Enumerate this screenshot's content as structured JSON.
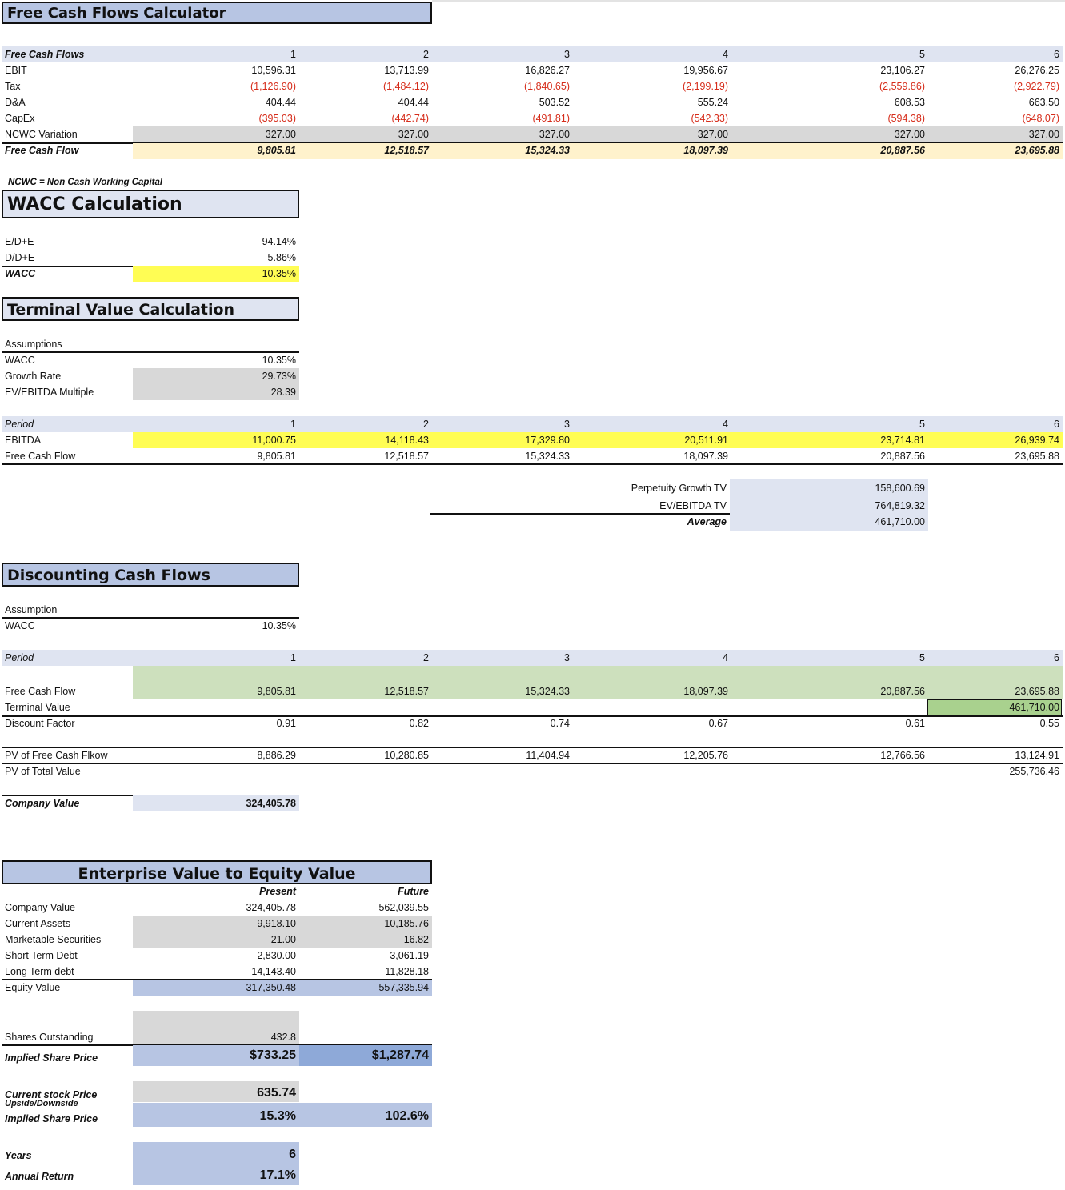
{
  "fcf": {
    "title": "Free Cash Flows Calculator",
    "header_label": "Free Cash Flows",
    "periods": [
      "1",
      "2",
      "3",
      "4",
      "5",
      "6"
    ],
    "rows": [
      {
        "label": "EBIT",
        "values": [
          "10,596.31",
          "13,713.99",
          "16,826.27",
          "19,956.67",
          "23,106.27",
          "26,276.25"
        ]
      },
      {
        "label": "Tax",
        "values": [
          "(1,126.90)",
          "(1,484.12)",
          "(1,840.65)",
          "(2,199.19)",
          "(2,559.86)",
          "(2,922.79)"
        ]
      },
      {
        "label": "D&A",
        "values": [
          "404.44",
          "404.44",
          "503.52",
          "555.24",
          "608.53",
          "663.50"
        ]
      },
      {
        "label": "CapEx",
        "values": [
          "(395.03)",
          "(442.74)",
          "(491.81)",
          "(542.33)",
          "(594.38)",
          "(648.07)"
        ]
      },
      {
        "label": "NCWC Variation",
        "values": [
          "327.00",
          "327.00",
          "327.00",
          "327.00",
          "327.00",
          "327.00"
        ]
      }
    ],
    "total": {
      "label": "Free Cash Flow",
      "values": [
        "9,805.81",
        "12,518.57",
        "15,324.33",
        "18,097.39",
        "20,887.56",
        "23,695.88"
      ]
    },
    "note": "NCWC = Non Cash Working Capital"
  },
  "wacc": {
    "title": "WACC Calculation",
    "rows": [
      {
        "label": "E/D+E",
        "value": "94.14%"
      },
      {
        "label": "D/D+E",
        "value": "5.86%"
      }
    ],
    "result": {
      "label": "WACC",
      "value": "10.35%"
    }
  },
  "tv": {
    "title": "Terminal Value Calculation",
    "assumptions_label": "Assumptions",
    "assumptions": [
      {
        "label": "WACC",
        "value": "10.35%"
      },
      {
        "label": "Growth Rate",
        "value": "29.73%"
      },
      {
        "label": "EV/EBITDA Multiple",
        "value": "28.39"
      }
    ],
    "period_label": "Period",
    "periods": [
      "1",
      "2",
      "3",
      "4",
      "5",
      "6"
    ],
    "ebitda": {
      "label": "EBITDA",
      "values": [
        "11,000.75",
        "14,118.43",
        "17,329.80",
        "20,511.91",
        "23,714.81",
        "26,939.74"
      ]
    },
    "fcf": {
      "label": "Free Cash Flow",
      "values": [
        "9,805.81",
        "12,518.57",
        "15,324.33",
        "18,097.39",
        "20,887.56",
        "23,695.88"
      ]
    },
    "summary": [
      {
        "label": "Perpetuity Growth TV",
        "value": "158,600.69"
      },
      {
        "label": "EV/EBITDA TV",
        "value": "764,819.32"
      },
      {
        "label": "Average",
        "value": "461,710.00"
      }
    ]
  },
  "dcf": {
    "title": "Discounting Cash Flows",
    "assumption_label": "Assumption",
    "wacc": {
      "label": "WACC",
      "value": "10.35%"
    },
    "period_label": "Period",
    "periods": [
      "1",
      "2",
      "3",
      "4",
      "5",
      "6"
    ],
    "fcf": {
      "label": "Free Cash Flow",
      "values": [
        "9,805.81",
        "12,518.57",
        "15,324.33",
        "18,097.39",
        "20,887.56",
        "23,695.88"
      ]
    },
    "terminal": {
      "label": "Terminal Value",
      "value": "461,710.00"
    },
    "discount": {
      "label": "Discount Factor",
      "values": [
        "0.91",
        "0.82",
        "0.74",
        "0.67",
        "0.61",
        "0.55"
      ]
    },
    "pv": {
      "label": "PV of Free Cash Flkow",
      "values": [
        "8,886.29",
        "10,280.85",
        "11,404.94",
        "12,205.76",
        "12,766.56",
        "13,124.91"
      ]
    },
    "pv_total": {
      "label": "PV of Total Value",
      "value": "255,736.46"
    },
    "company": {
      "label": "Company Value",
      "value": "324,405.78"
    }
  },
  "ev": {
    "title": "Enterprise Value to Equity Value",
    "col_present": "Present",
    "col_future": "Future",
    "rows": [
      {
        "label": "Company Value",
        "present": "324,405.78",
        "future": "562,039.55"
      },
      {
        "label": "Current Assets",
        "present": "9,918.10",
        "future": "10,185.76"
      },
      {
        "label": "Marketable Securities",
        "present": "21.00",
        "future": "16.82"
      },
      {
        "label": "Short Term Debt",
        "present": "2,830.00",
        "future": "3,061.19"
      },
      {
        "label": "Long Term debt",
        "present": "14,143.40",
        "future": "11,828.18"
      }
    ],
    "equity": {
      "label": "Equity Value",
      "present": "317,350.48",
      "future": "557,335.94"
    },
    "shares": {
      "label": "Shares Outstanding",
      "value": "432.8"
    },
    "implied": {
      "label": "Implied Share Price",
      "present": "$733.25",
      "future": "$1,287.74"
    },
    "current_price": {
      "label": "Current stock Price",
      "value": "635.74"
    },
    "upside_label": "Upside/Downside",
    "upside": {
      "label": "Implied Share Price",
      "present": "15.3%",
      "future": "102.6%"
    },
    "years": {
      "label": "Years",
      "value": "6"
    },
    "annual": {
      "label": "Annual Return",
      "value": "17.1%"
    }
  }
}
